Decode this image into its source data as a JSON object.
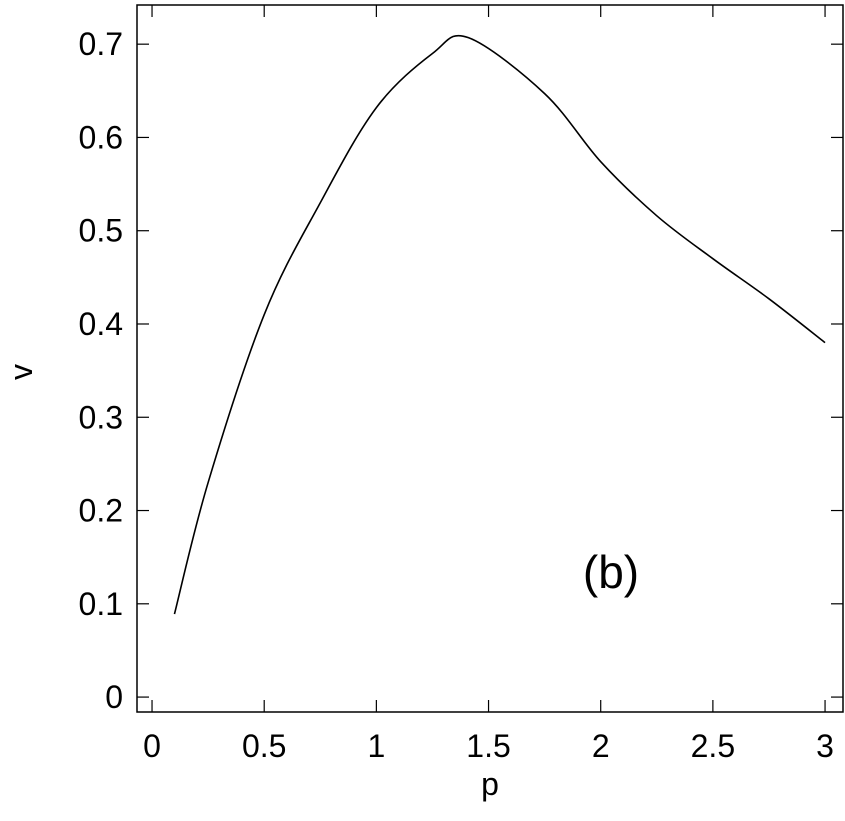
{
  "chart_data": {
    "type": "line",
    "x_label": "p",
    "y_label": "v",
    "annotation": "(b)",
    "x": [
      0.1,
      0.25,
      0.5,
      0.75,
      1.0,
      1.25,
      1.41,
      1.75,
      2.0,
      2.25,
      2.5,
      2.75,
      3.0
    ],
    "series": [
      {
        "color": "#000000",
        "values": [
          0.089,
          0.23,
          0.41,
          0.53,
          0.632,
          0.69,
          0.707,
          0.647,
          0.574,
          0.516,
          0.47,
          0.427,
          0.38
        ]
      }
    ],
    "xlim": [
      -0.067,
      3.08
    ],
    "ylim": [
      -0.016,
      0.742
    ],
    "xticks": [
      0,
      0.5,
      1,
      1.5,
      2,
      2.5,
      3
    ],
    "yticks": [
      0,
      0.1,
      0.2,
      0.3,
      0.4,
      0.5,
      0.6,
      0.7
    ],
    "grid": false
  }
}
